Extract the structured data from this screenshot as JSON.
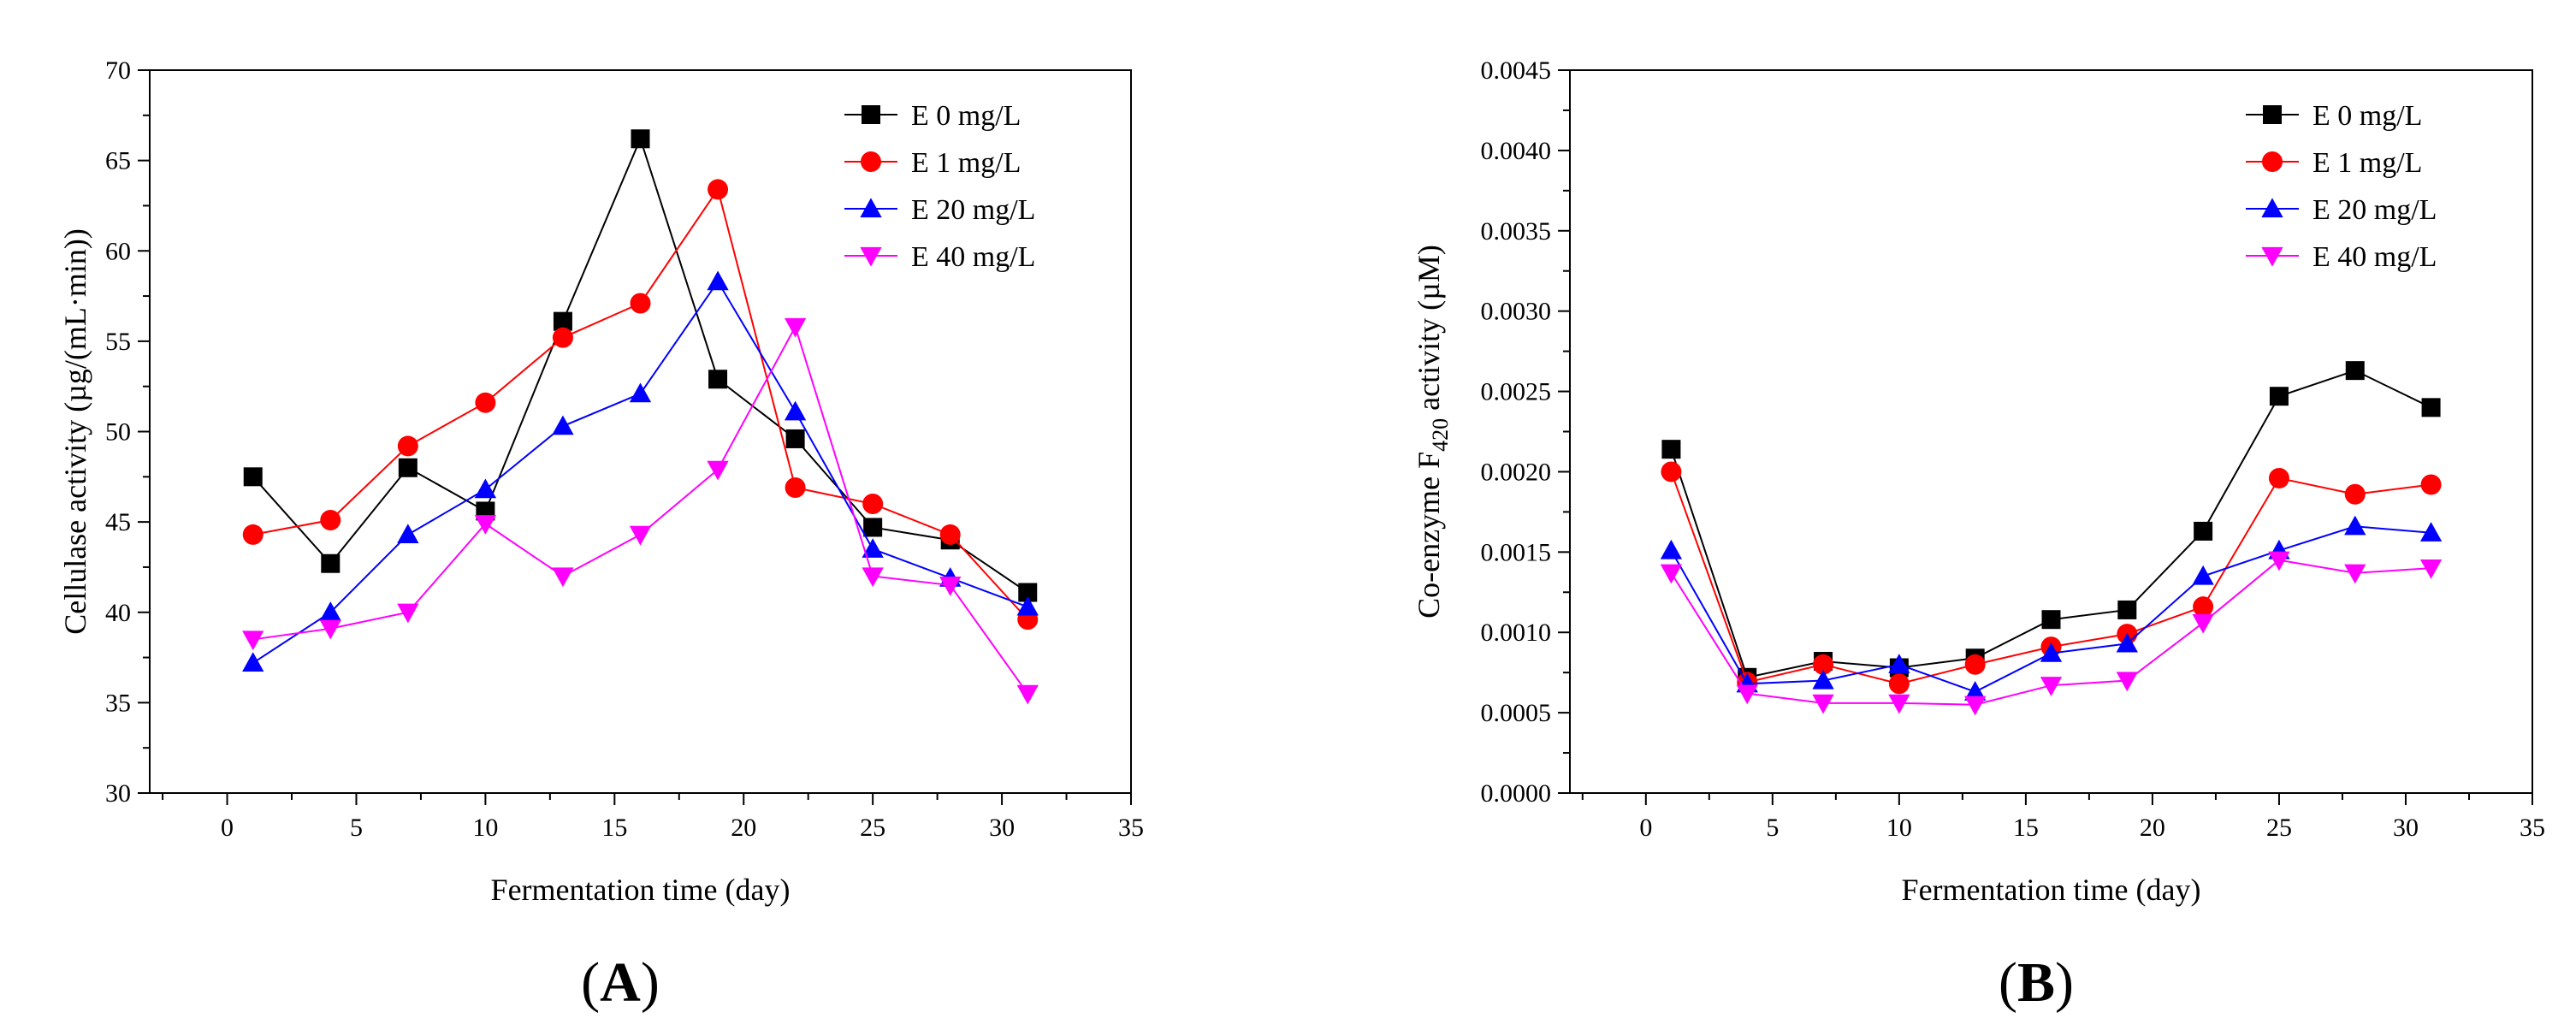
{
  "figure": {
    "panel_a_label": {
      "open": "(",
      "letter": "A",
      "close": ")"
    },
    "panel_b_label": {
      "open": "(",
      "letter": "B",
      "close": ")"
    }
  },
  "chart_data": [
    {
      "id": "A",
      "type": "line",
      "title": "",
      "xlabel": "Fermentation time (day)",
      "ylabel": "Cellulase activity (µg/(mL·min))",
      "xlim": [
        -3,
        35
      ],
      "ylim": [
        30,
        70
      ],
      "xticks": [
        0,
        5,
        10,
        15,
        20,
        25,
        30,
        35
      ],
      "yticks": [
        30,
        35,
        40,
        45,
        50,
        55,
        60,
        65,
        70
      ],
      "ytick_labels": [
        "30",
        "35",
        "40",
        "45",
        "50",
        "55",
        "60",
        "65",
        "70"
      ],
      "grid": false,
      "legend_position": "top-right",
      "x": [
        1,
        4,
        7,
        10,
        13,
        16,
        19,
        22,
        25,
        28,
        31
      ],
      "series": [
        {
          "name": "E 0 mg/L",
          "color": "#000000",
          "marker": "square",
          "values": [
            47.5,
            42.7,
            48.0,
            45.6,
            56.1,
            66.2,
            52.9,
            49.6,
            44.7,
            44.0,
            41.1
          ]
        },
        {
          "name": "E 1 mg/L",
          "color": "#ff0000",
          "marker": "circle",
          "values": [
            44.3,
            45.1,
            49.2,
            51.6,
            55.2,
            57.1,
            63.4,
            46.9,
            46.0,
            44.3,
            39.6
          ]
        },
        {
          "name": "E 20 mg/L",
          "color": "#0000ff",
          "marker": "triangle-up",
          "values": [
            37.2,
            40.0,
            44.3,
            46.8,
            50.3,
            52.1,
            58.3,
            51.1,
            43.5,
            41.9,
            40.3
          ]
        },
        {
          "name": "E 40 mg/L",
          "color": "#ff00ff",
          "marker": "triangle-down",
          "values": [
            38.5,
            39.1,
            40.0,
            44.9,
            42.0,
            44.3,
            47.9,
            55.8,
            42.0,
            41.5,
            35.5
          ]
        }
      ]
    },
    {
      "id": "B",
      "type": "line",
      "title": "",
      "xlabel": "Fermentation time (day)",
      "ylabel_prefix": "Co-enzyme F",
      "ylabel_sub": "420",
      "ylabel_suffix": " activity (µM)",
      "xlim": [
        -3,
        35
      ],
      "ylim": [
        0,
        0.0045
      ],
      "xticks": [
        0,
        5,
        10,
        15,
        20,
        25,
        30,
        35
      ],
      "yticks": [
        0,
        0.0005,
        0.001,
        0.0015,
        0.002,
        0.0025,
        0.003,
        0.0035,
        0.004,
        0.0045
      ],
      "ytick_labels": [
        "0.0000",
        "0.0005",
        "0.0010",
        "0.0015",
        "0.0020",
        "0.0025",
        "0.0030",
        "0.0035",
        "0.0040",
        "0.0045"
      ],
      "grid": false,
      "legend_position": "top-right",
      "x": [
        1,
        4,
        7,
        10,
        13,
        16,
        19,
        22,
        25,
        28,
        31
      ],
      "series": [
        {
          "name": "E  0 mg/L",
          "color": "#000000",
          "marker": "square",
          "values": [
            0.00214,
            0.00072,
            0.00082,
            0.00078,
            0.00084,
            0.00108,
            0.00114,
            0.00163,
            0.00247,
            0.00263,
            0.0024
          ]
        },
        {
          "name": "E  1 mg/L",
          "color": "#ff0000",
          "marker": "circle",
          "values": [
            0.002,
            0.00069,
            0.0008,
            0.00068,
            0.0008,
            0.00091,
            0.00099,
            0.00116,
            0.00196,
            0.00186,
            0.00192
          ]
        },
        {
          "name": "E  20 mg/L",
          "color": "#0000ff",
          "marker": "triangle-up",
          "values": [
            0.00151,
            0.00068,
            0.0007,
            0.0008,
            0.00063,
            0.00087,
            0.00093,
            0.00135,
            0.00151,
            0.00166,
            0.00162
          ]
        },
        {
          "name": "E  40 mg/L",
          "color": "#ff00ff",
          "marker": "triangle-down",
          "values": [
            0.00137,
            0.00062,
            0.00056,
            0.00056,
            0.00055,
            0.00067,
            0.0007,
            0.00106,
            0.00145,
            0.00137,
            0.0014
          ]
        }
      ]
    }
  ]
}
